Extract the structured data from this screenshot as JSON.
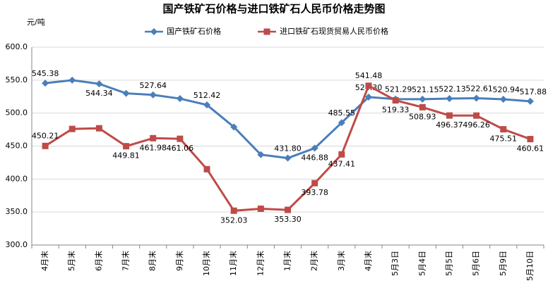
{
  "chart_data": {
    "type": "line",
    "title": "国产铁矿石价格与进口铁矿石人民币价格走势图",
    "y_axis_label": "元/吨",
    "categories": [
      "4月末",
      "5月末",
      "6月末",
      "7月末",
      "8月末",
      "9月末",
      "10月末",
      "11月末",
      "12月末",
      "1月末",
      "2月末",
      "3月末",
      "4月末",
      "5月3日",
      "5月4日",
      "5月5日",
      "5月6日",
      "5月9日",
      "5月10日"
    ],
    "series": [
      {
        "name": "国产铁矿石价格",
        "color": "#4a7ebb",
        "marker": "diamond",
        "values": [
          545.38,
          550,
          544.34,
          530,
          527.64,
          522,
          512.42,
          479,
          437,
          431.8,
          446.88,
          485.55,
          524.3,
          521.29,
          521.15,
          522.13,
          522.61,
          520.94,
          517.88
        ],
        "value_labels": [
          "545.38",
          null,
          "544.34",
          null,
          "527.64",
          null,
          "512.42",
          null,
          null,
          "431.80",
          "446.88",
          "485.55",
          "524.30",
          "521.29",
          "521.15",
          "522.13",
          "522.61",
          "520.94",
          "517.88"
        ]
      },
      {
        "name": "进口铁矿石现货贸易人民币价格",
        "color": "#be4b48",
        "marker": "square",
        "values": [
          450.21,
          476,
          477,
          449.81,
          461.98,
          461.06,
          415,
          352.03,
          355,
          353.3,
          393.78,
          437.41,
          541.48,
          519.33,
          508.93,
          496.37,
          496.26,
          475.51,
          460.61
        ],
        "value_labels": [
          "450.21",
          null,
          null,
          "449.81",
          "461.98",
          "461.06",
          null,
          "352.03",
          null,
          "353.30",
          "393.78",
          "437.41",
          "541.48",
          "519.33",
          "508.93",
          "496.37",
          "496.26",
          "475.51",
          "460.61"
        ]
      }
    ],
    "ylim": [
      300,
      600
    ],
    "yticks": [
      {
        "value": 300,
        "label": "300.0"
      },
      {
        "value": 350,
        "label": "350.0"
      },
      {
        "value": 400,
        "label": "400.0"
      },
      {
        "value": 450,
        "label": "450.0"
      },
      {
        "value": 500,
        "label": "500.0"
      },
      {
        "value": 550,
        "label": "550.0"
      },
      {
        "value": 600,
        "label": "600.0"
      }
    ],
    "grid": true,
    "legend": "top"
  }
}
